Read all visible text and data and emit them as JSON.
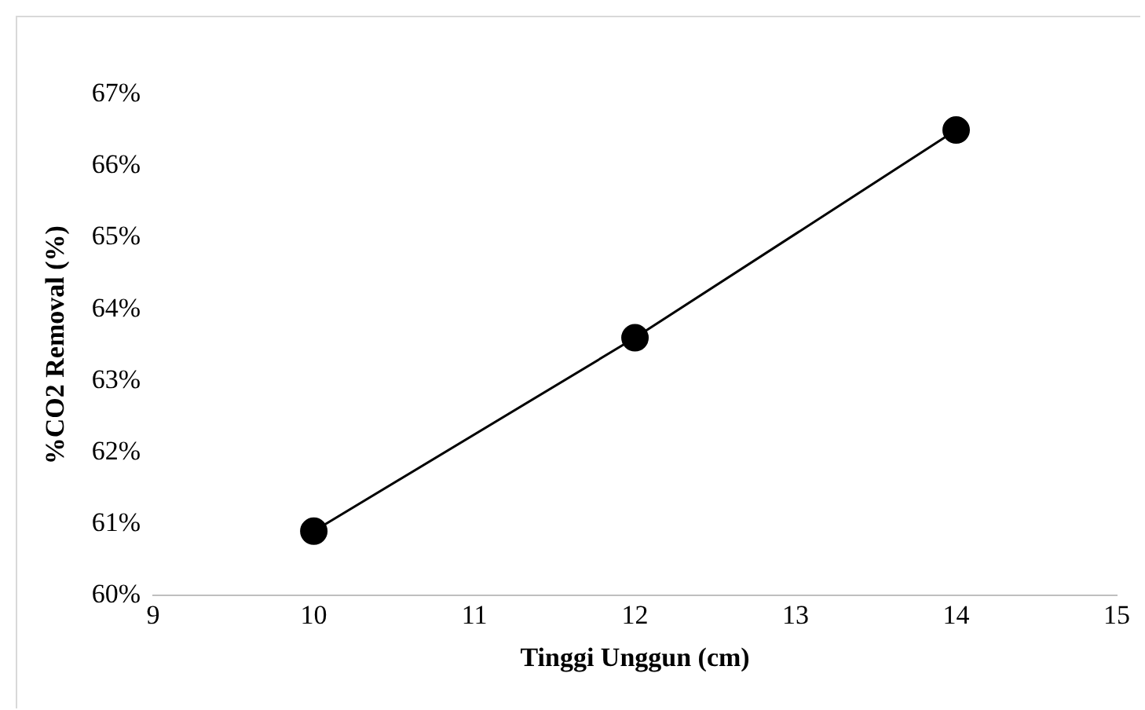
{
  "chart_data": {
    "type": "line",
    "xlabel": "Tinggi Unggun (cm)",
    "ylabel": "%CO2 Removal (%)",
    "x": [
      10,
      12,
      14
    ],
    "series": [
      {
        "color": "#000000",
        "values": [
          60.9,
          63.6,
          66.5
        ]
      }
    ],
    "xlim": [
      9,
      15
    ],
    "xticks": [
      9,
      10,
      11,
      12,
      13,
      14,
      15
    ],
    "ylim": [
      60,
      67
    ],
    "yticks": [
      {
        "value": 60,
        "label": "60%"
      },
      {
        "value": 61,
        "label": "61%"
      },
      {
        "value": 62,
        "label": "62%"
      },
      {
        "value": 63,
        "label": "63%"
      },
      {
        "value": 64,
        "label": "64%"
      },
      {
        "value": 65,
        "label": "65%"
      },
      {
        "value": 66,
        "label": "66%"
      },
      {
        "value": 67,
        "label": "67%"
      }
    ],
    "grid": false,
    "legend": false,
    "marker": "circle",
    "line_style": "solid"
  }
}
